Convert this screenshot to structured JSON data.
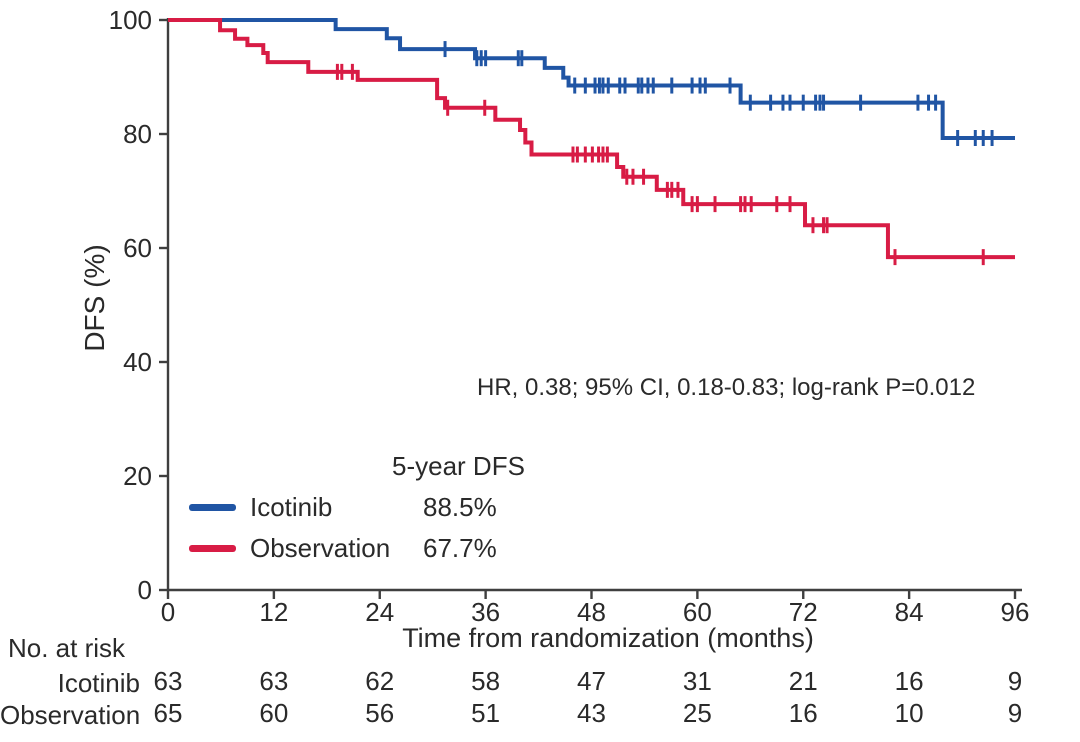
{
  "figure": {
    "y_axis_title": "DFS (%)",
    "x_axis_title": "Time from randomization (months)",
    "annotation": "HR, 0.38; 95% CI, 0.18-0.83; log-rank P=0.012",
    "legend": {
      "header": "5-year DFS",
      "items": [
        {
          "label": "Icotinib",
          "value": "88.5%",
          "color": "#2055a4"
        },
        {
          "label": "Observation",
          "value": "67.7%",
          "color": "#d81c45"
        }
      ]
    },
    "risk_table": {
      "header": "No. at risk",
      "rows": [
        {
          "label": "Icotinib",
          "counts": [
            63,
            63,
            62,
            58,
            47,
            31,
            21,
            16,
            9
          ]
        },
        {
          "label": "Observation",
          "counts": [
            65,
            60,
            56,
            51,
            43,
            25,
            16,
            10,
            9
          ]
        }
      ]
    },
    "colors": {
      "icotinib": "#2055a4",
      "observation": "#d81c45",
      "axis": "#3f3f3f",
      "text": "#2a2a2a"
    }
  },
  "chart_data": {
    "type": "line",
    "subtype": "kaplan-meier-step",
    "title": "",
    "xlabel": "Time from randomization (months)",
    "ylabel": "DFS (%)",
    "xlim": [
      0,
      96
    ],
    "ylim": [
      0,
      100
    ],
    "x_ticks": [
      0,
      12,
      24,
      36,
      48,
      60,
      72,
      84,
      96
    ],
    "y_ticks": [
      0,
      20,
      40,
      60,
      80,
      100
    ],
    "grid": false,
    "legend_position": "lower-left-inside",
    "annotation": "HR, 0.38; 95% CI, 0.18-0.83; log-rank P=0.012",
    "series": [
      {
        "name": "Icotinib",
        "color": "#2055a4",
        "n_at_start": 63,
        "five_year_dfs_pct": 88.5,
        "end_pct": 79.3,
        "steps": [
          [
            0,
            100
          ],
          [
            19.0,
            98.4
          ],
          [
            24.8,
            96.8
          ],
          [
            26.3,
            94.9
          ],
          [
            34.8,
            93.3
          ],
          [
            42.7,
            91.6
          ],
          [
            44.8,
            89.9
          ],
          [
            45.4,
            88.5
          ],
          [
            64.9,
            85.5
          ],
          [
            87.8,
            79.3
          ]
        ],
        "censors": [
          [
            31.4,
            94.9
          ],
          [
            35.0,
            93.3
          ],
          [
            35.5,
            93.3
          ],
          [
            36.0,
            93.3
          ],
          [
            39.7,
            93.3
          ],
          [
            40.1,
            93.3
          ],
          [
            46.1,
            88.5
          ],
          [
            47.3,
            88.5
          ],
          [
            48.4,
            88.5
          ],
          [
            48.9,
            88.5
          ],
          [
            49.3,
            88.5
          ],
          [
            49.9,
            88.5
          ],
          [
            51.2,
            88.5
          ],
          [
            51.8,
            88.5
          ],
          [
            53.3,
            88.5
          ],
          [
            53.7,
            88.5
          ],
          [
            54.4,
            88.5
          ],
          [
            55.0,
            88.5
          ],
          [
            57.1,
            88.5
          ],
          [
            59.4,
            88.5
          ],
          [
            60.3,
            88.5
          ],
          [
            60.9,
            88.5
          ],
          [
            63.7,
            88.5
          ],
          [
            66.0,
            85.5
          ],
          [
            68.3,
            85.5
          ],
          [
            69.7,
            85.5
          ],
          [
            70.5,
            85.5
          ],
          [
            72.0,
            85.5
          ],
          [
            73.4,
            85.5
          ],
          [
            73.9,
            85.5
          ],
          [
            74.3,
            85.5
          ],
          [
            78.5,
            85.5
          ],
          [
            85.0,
            85.5
          ],
          [
            86.2,
            85.5
          ],
          [
            87.0,
            85.5
          ],
          [
            89.5,
            79.3
          ],
          [
            91.5,
            79.3
          ],
          [
            92.4,
            79.3
          ],
          [
            93.4,
            79.3
          ]
        ]
      },
      {
        "name": "Observation",
        "color": "#d81c45",
        "n_at_start": 65,
        "five_year_dfs_pct": 67.7,
        "end_pct": 58.4,
        "steps": [
          [
            0,
            100
          ],
          [
            5.9,
            98.2
          ],
          [
            7.6,
            96.7
          ],
          [
            9.0,
            95.6
          ],
          [
            10.8,
            94.2
          ],
          [
            11.3,
            92.6
          ],
          [
            15.9,
            90.9
          ],
          [
            21.5,
            89.5
          ],
          [
            30.5,
            86.3
          ],
          [
            31.4,
            84.6
          ],
          [
            37.1,
            82.5
          ],
          [
            39.9,
            80.7
          ],
          [
            40.5,
            78.5
          ],
          [
            41.2,
            76.4
          ],
          [
            50.9,
            74.2
          ],
          [
            51.6,
            72.5
          ],
          [
            55.4,
            70.2
          ],
          [
            58.4,
            67.7
          ],
          [
            72.2,
            64.0
          ],
          [
            81.6,
            58.4
          ]
        ],
        "censors": [
          [
            19.2,
            90.9
          ],
          [
            19.7,
            90.9
          ],
          [
            20.9,
            90.9
          ],
          [
            31.7,
            84.6
          ],
          [
            35.9,
            84.6
          ],
          [
            45.9,
            76.4
          ],
          [
            46.4,
            76.4
          ],
          [
            47.3,
            76.4
          ],
          [
            48.1,
            76.4
          ],
          [
            48.8,
            76.4
          ],
          [
            49.3,
            76.4
          ],
          [
            49.8,
            76.4
          ],
          [
            52.0,
            72.5
          ],
          [
            52.7,
            72.5
          ],
          [
            53.9,
            72.5
          ],
          [
            56.6,
            70.2
          ],
          [
            57.1,
            70.2
          ],
          [
            57.8,
            70.2
          ],
          [
            59.4,
            67.7
          ],
          [
            60.0,
            67.7
          ],
          [
            62.0,
            67.7
          ],
          [
            64.9,
            67.7
          ],
          [
            65.4,
            67.7
          ],
          [
            66.1,
            67.7
          ],
          [
            69.0,
            67.7
          ],
          [
            70.5,
            67.7
          ],
          [
            73.1,
            64.0
          ],
          [
            74.3,
            64.0
          ],
          [
            74.7,
            64.0
          ],
          [
            82.4,
            58.4
          ],
          [
            92.4,
            58.4
          ]
        ]
      }
    ],
    "risk_table": {
      "header": "No. at risk",
      "time_points": [
        0,
        12,
        24,
        36,
        48,
        60,
        72,
        84,
        96
      ],
      "rows": [
        {
          "name": "Icotinib",
          "counts": [
            63,
            63,
            62,
            58,
            47,
            31,
            21,
            16,
            9
          ]
        },
        {
          "name": "Observation",
          "counts": [
            65,
            60,
            56,
            51,
            43,
            25,
            16,
            10,
            9
          ]
        }
      ]
    }
  }
}
